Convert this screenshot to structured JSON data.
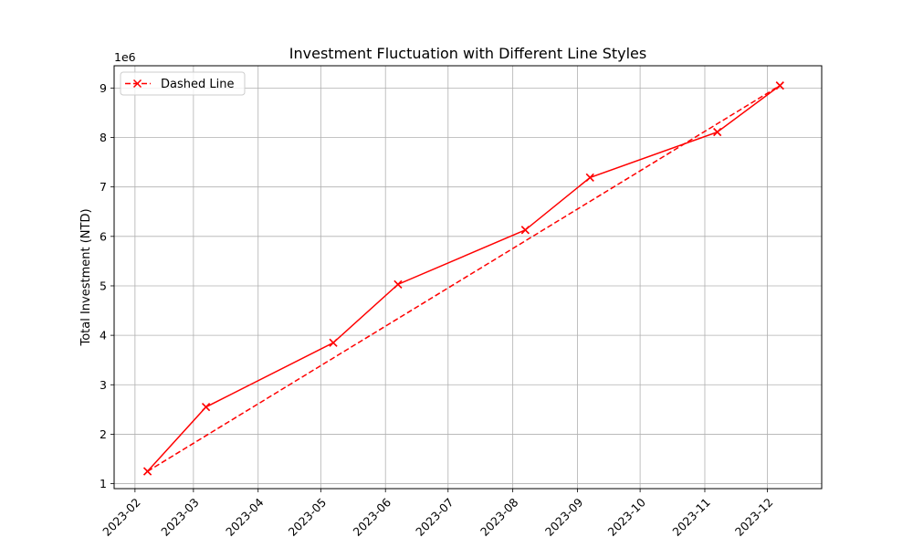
{
  "chart_data": {
    "type": "line",
    "title": "Investment Fluctuation with Different Line Styles",
    "xlabel": "",
    "ylabel": "Total Investment (NTD)",
    "y_offset_text": "1e6",
    "y_scale_factor": 1000000,
    "xlim": [
      "2023-01-22",
      "2023-12-27"
    ],
    "ylim": [
      900000,
      9450000
    ],
    "x_ticks": [
      "2023-02",
      "2023-03",
      "2023-04",
      "2023-05",
      "2023-06",
      "2023-07",
      "2023-08",
      "2023-09",
      "2023-10",
      "2023-11",
      "2023-12"
    ],
    "y_ticks": [
      1,
      2,
      3,
      4,
      5,
      6,
      7,
      8,
      9
    ],
    "grid": true,
    "legend_position": "upper-left",
    "x": [
      "2023-02-07",
      "2023-03-07",
      "2023-05-07",
      "2023-06-07",
      "2023-08-07",
      "2023-09-07",
      "2023-11-07",
      "2023-12-07"
    ],
    "series": [
      {
        "name": "",
        "style": "solid",
        "color": "#ff0000",
        "marker": "x",
        "values": [
          1250000,
          2550000,
          3850000,
          5030000,
          6130000,
          7190000,
          8110000,
          9050000
        ]
      },
      {
        "name": "Dashed Line",
        "style": "dashed",
        "color": "#ff0000",
        "marker": "x",
        "values": [
          1250000,
          2550000,
          3850000,
          5030000,
          6130000,
          7190000,
          8110000,
          9050000
        ]
      }
    ]
  }
}
